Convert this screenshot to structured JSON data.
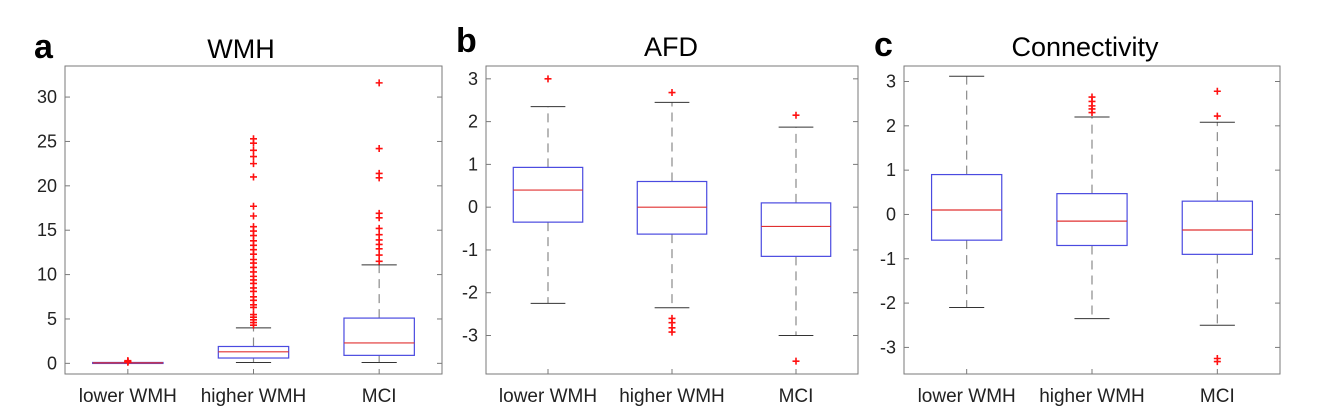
{
  "figure": {
    "panel_letters": [
      "a",
      "b",
      "c"
    ]
  },
  "chart_data": [
    {
      "type": "box",
      "title": "WMH",
      "categories": [
        "lower WMH",
        "higher WMH",
        "MCI"
      ],
      "ylim": [
        -1.2,
        33.5
      ],
      "yticks": [
        0,
        5,
        10,
        15,
        20,
        25,
        30
      ],
      "boxes": [
        {
          "q1": 0.0,
          "median": 0.05,
          "q3": 0.1,
          "whisker_low": 0.0,
          "whisker_high": 0.1,
          "outliers": [
            0.12,
            0.15,
            0.18,
            0.22,
            0.25,
            0.3
          ]
        },
        {
          "q1": 0.6,
          "median": 1.3,
          "q3": 1.9,
          "whisker_low": 0.1,
          "whisker_high": 4.0,
          "outliers": [
            4.3,
            4.6,
            4.9,
            5.2,
            5.5,
            6.3,
            6.6,
            7.1,
            7.5,
            8.1,
            8.5,
            9.0,
            9.4,
            9.8,
            10.3,
            10.8,
            11.3,
            11.7,
            12.3,
            12.8,
            13.3,
            13.8,
            14.4,
            14.9,
            15.4,
            16.6,
            17.7,
            21.0,
            22.5,
            23.3,
            24.0,
            24.8,
            25.3
          ]
        },
        {
          "q1": 0.9,
          "median": 2.3,
          "q3": 5.1,
          "whisker_low": 0.1,
          "whisker_high": 11.1,
          "outliers": [
            11.5,
            12.2,
            12.9,
            13.4,
            13.9,
            14.5,
            15.2,
            16.4,
            16.9,
            20.9,
            21.4,
            24.2,
            31.6
          ]
        }
      ]
    },
    {
      "type": "box",
      "title": "AFD",
      "categories": [
        "lower WMH",
        "higher WMH",
        "MCI"
      ],
      "ylim": [
        -3.9,
        3.3
      ],
      "yticks": [
        -3,
        -2,
        -1,
        0,
        1,
        2,
        3
      ],
      "boxes": [
        {
          "q1": -0.35,
          "median": 0.4,
          "q3": 0.93,
          "whisker_low": -2.25,
          "whisker_high": 2.35,
          "outliers": [
            3.0
          ]
        },
        {
          "q1": -0.63,
          "median": 0.0,
          "q3": 0.6,
          "whisker_low": -2.35,
          "whisker_high": 2.45,
          "outliers": [
            2.68,
            -2.6,
            -2.7,
            -2.82,
            -2.92
          ]
        },
        {
          "q1": -1.15,
          "median": -0.45,
          "q3": 0.1,
          "whisker_low": -3.0,
          "whisker_high": 1.87,
          "outliers": [
            2.15,
            -3.6
          ]
        }
      ]
    },
    {
      "type": "box",
      "title": "Connectivity",
      "categories": [
        "lower WMH",
        "higher WMH",
        "MCI"
      ],
      "ylim": [
        -3.6,
        3.35
      ],
      "yticks": [
        -3,
        -2,
        -1,
        0,
        1,
        2,
        3
      ],
      "boxes": [
        {
          "q1": -0.58,
          "median": 0.1,
          "q3": 0.9,
          "whisker_low": -2.1,
          "whisker_high": 3.12,
          "outliers": []
        },
        {
          "q1": -0.7,
          "median": -0.15,
          "q3": 0.47,
          "whisker_low": -2.35,
          "whisker_high": 2.2,
          "outliers": [
            2.3,
            2.38,
            2.45,
            2.55,
            2.65
          ]
        },
        {
          "q1": -0.9,
          "median": -0.35,
          "q3": 0.3,
          "whisker_low": -2.5,
          "whisker_high": 2.08,
          "outliers": [
            2.22,
            2.78,
            -3.25,
            -3.32
          ]
        }
      ]
    }
  ],
  "colors": {
    "box": "#4a4ae0",
    "median": "#e03030",
    "outlier": "#ff1010",
    "whisker": "#8a8a8a",
    "axis": "#7a7a7a",
    "text": "#222222"
  }
}
